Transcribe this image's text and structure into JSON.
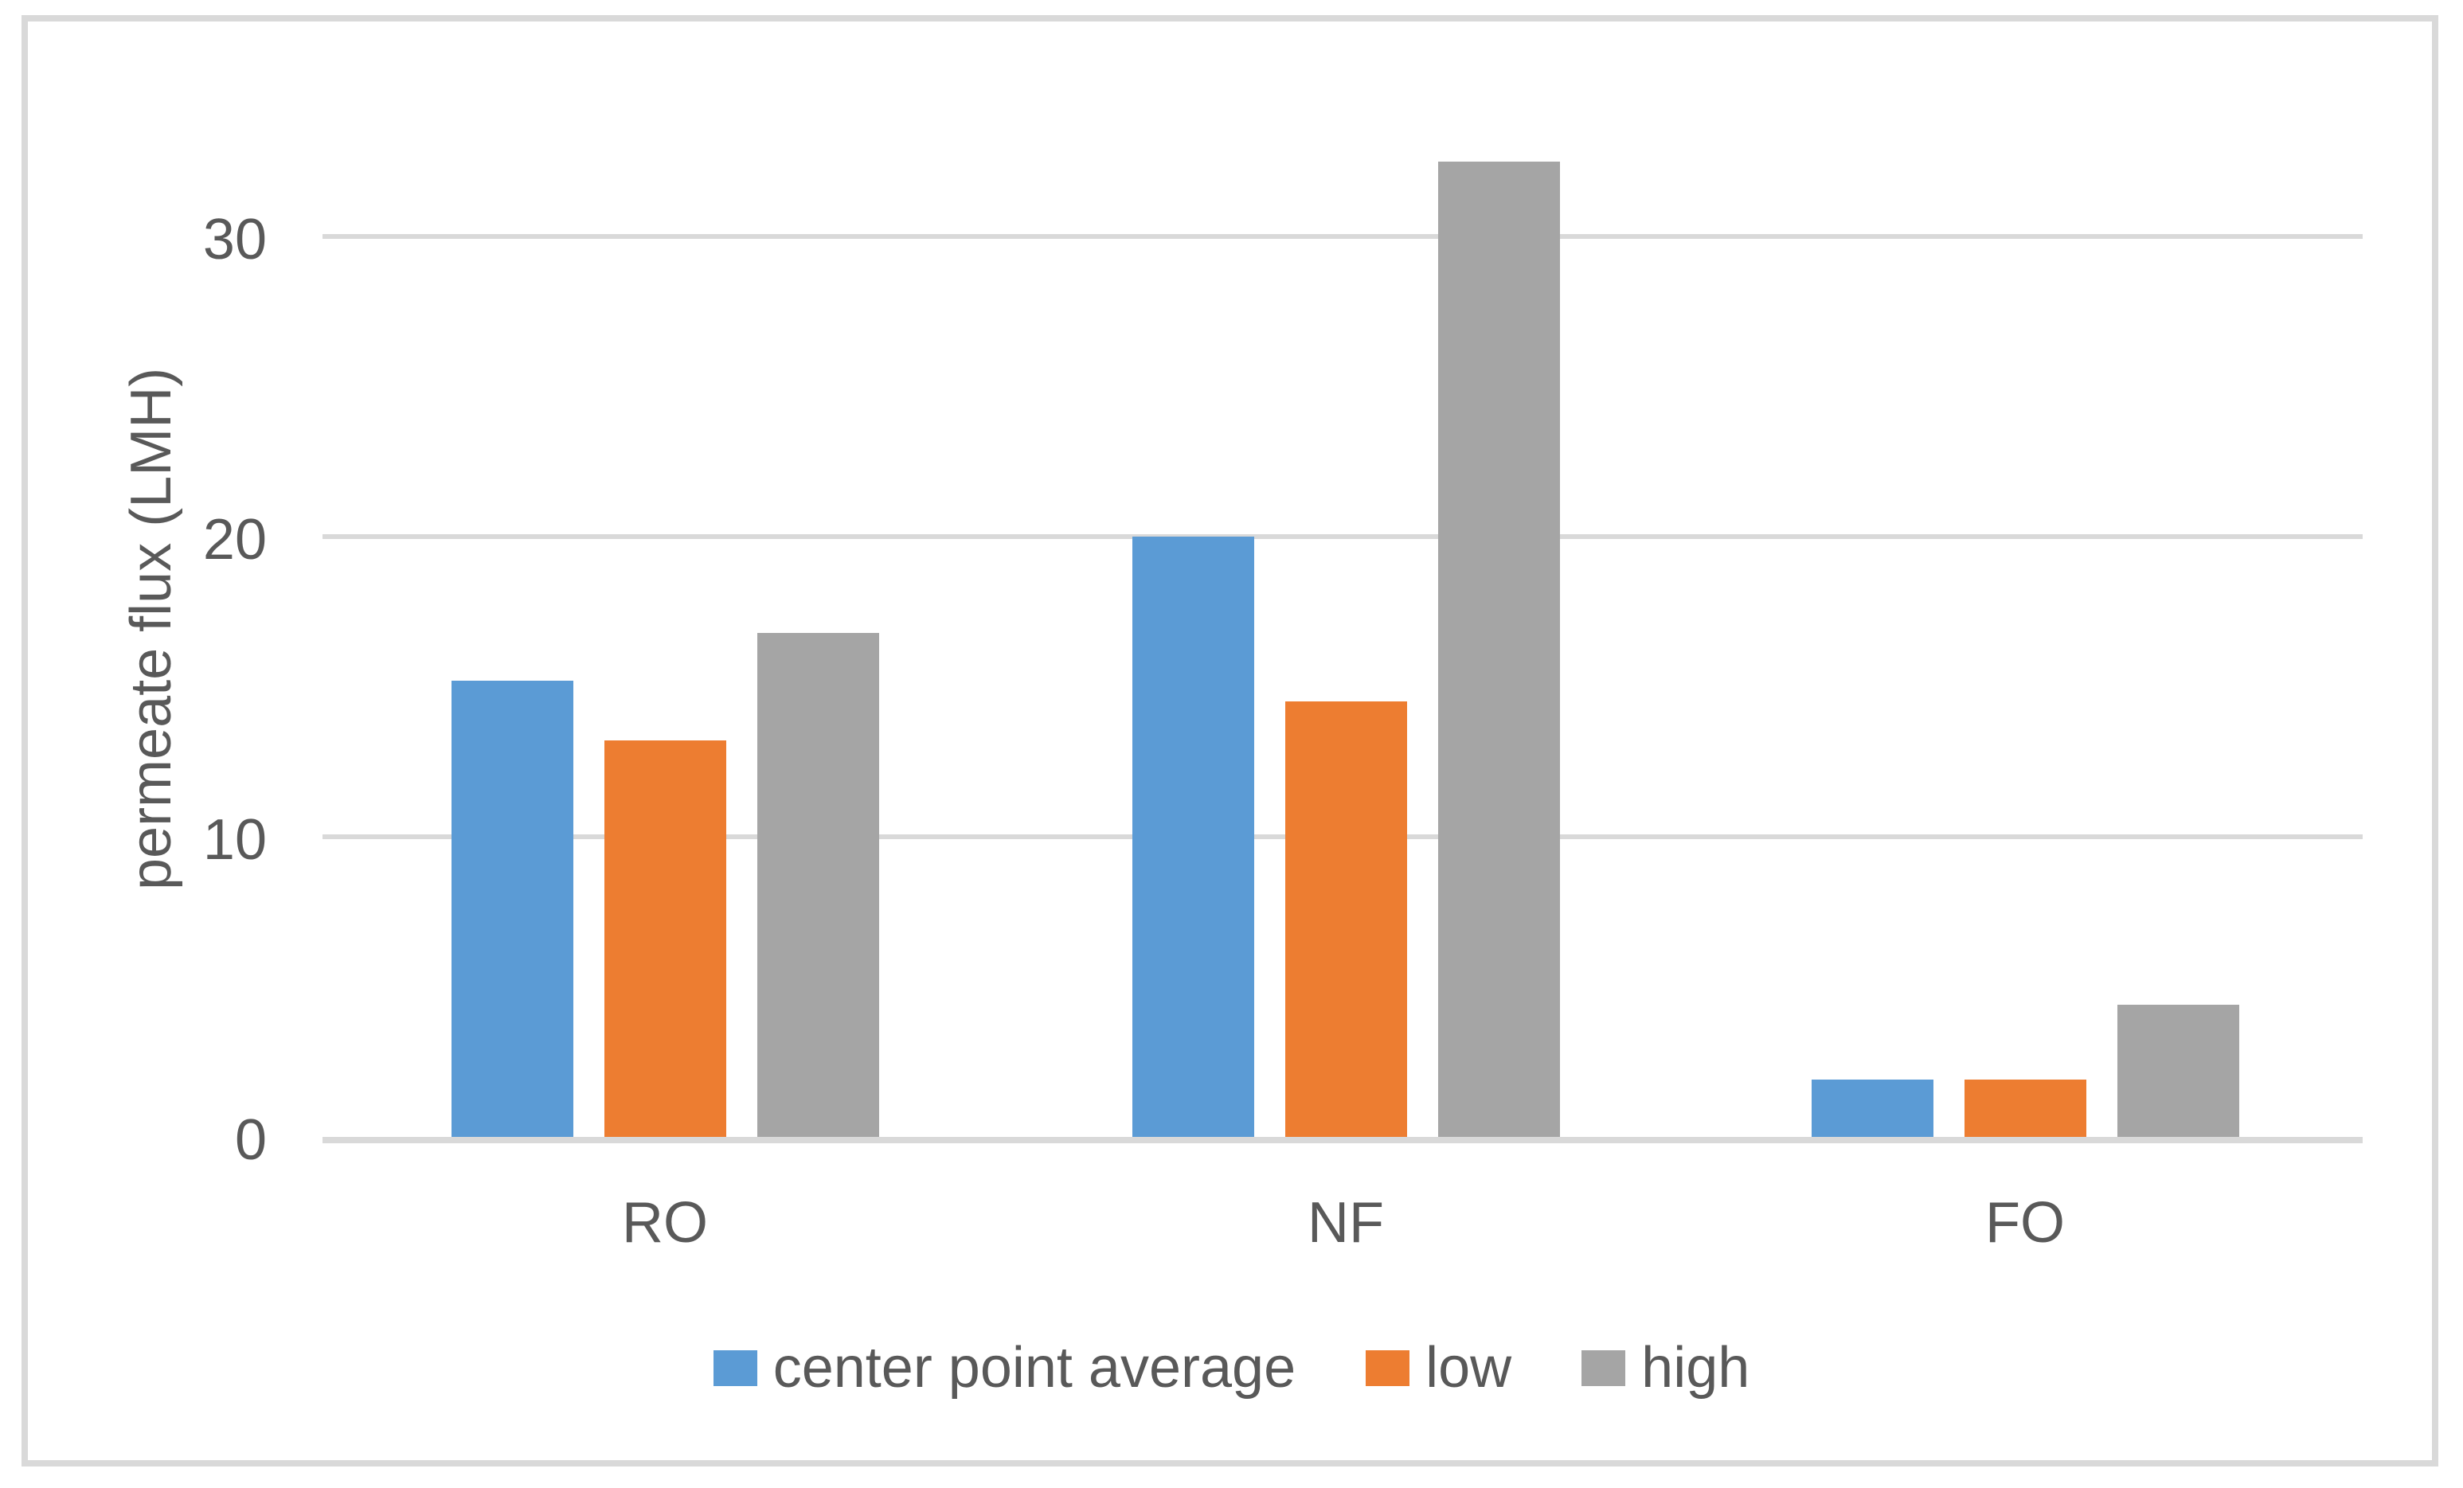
{
  "figure": {
    "background": "#ffffff",
    "border_color": "#d9d9d9"
  },
  "chart_data": {
    "type": "bar",
    "title": "",
    "xlabel": "",
    "ylabel": "permeate flux (LMH)",
    "categories": [
      "RO",
      "NF",
      "FO"
    ],
    "series": [
      {
        "name": "center point average",
        "color": "#5b9bd5",
        "values": [
          15.2,
          20.0,
          1.9
        ]
      },
      {
        "name": "low",
        "color": "#ed7d31",
        "values": [
          13.2,
          14.5,
          1.9
        ]
      },
      {
        "name": "high",
        "color": "#a5a5a5",
        "values": [
          16.8,
          32.5,
          4.4
        ]
      }
    ],
    "yticks": [
      0,
      10,
      20,
      30
    ],
    "ytick_labels": [
      "0",
      "10",
      "20",
      "30"
    ],
    "ylim": [
      0,
      33.5
    ],
    "grid": true,
    "gridline_color": "#d9d9d9",
    "text_color": "#595959",
    "legend_position": "bottom"
  }
}
